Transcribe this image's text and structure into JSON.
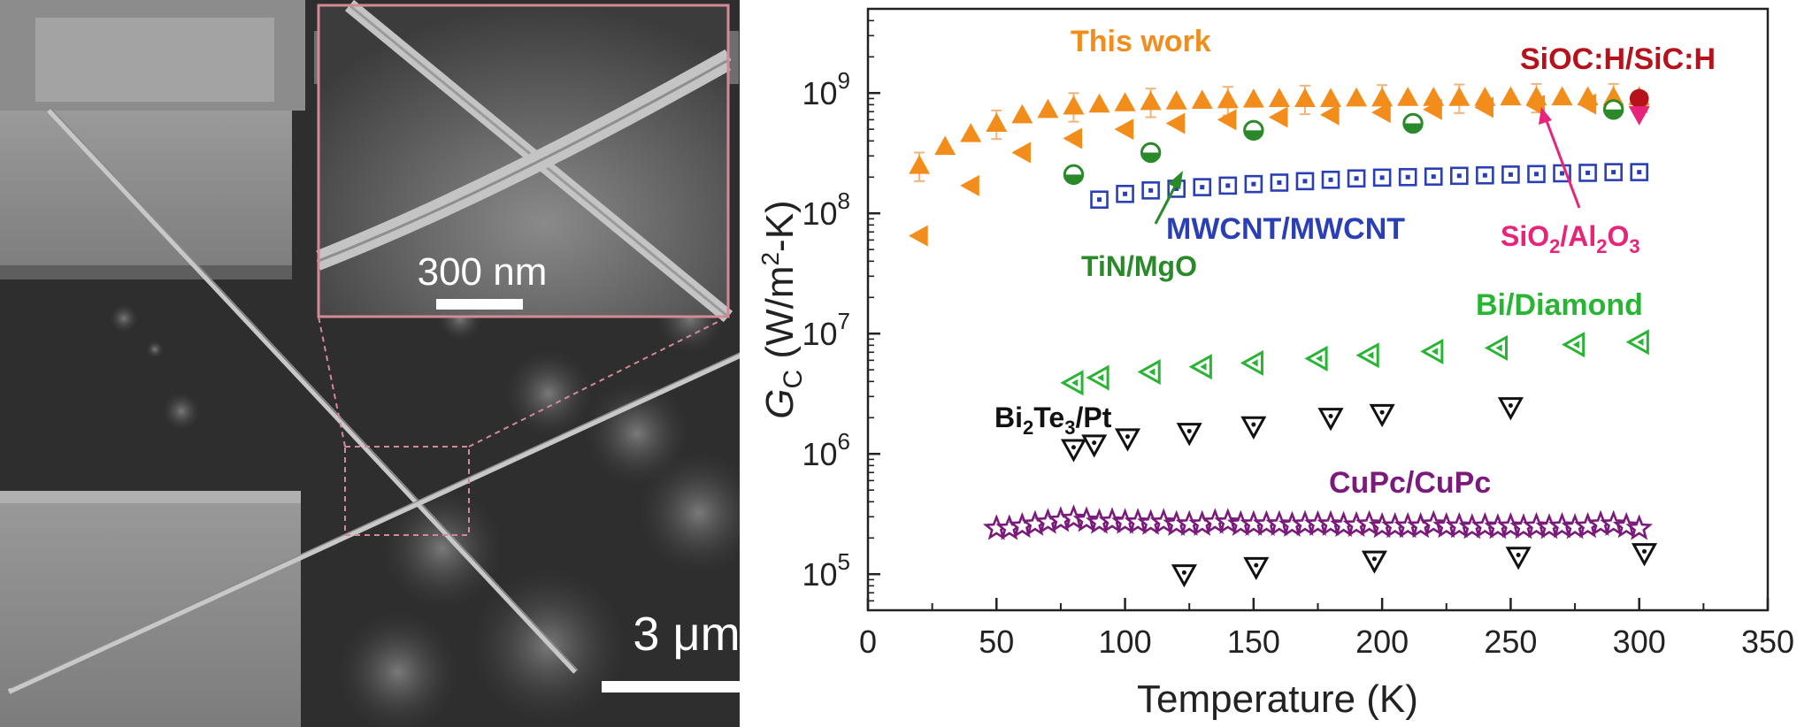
{
  "sem": {
    "inset_scale": "300 nm",
    "main_scale": "3 μm"
  },
  "chart_data": {
    "type": "scatter",
    "xlabel": "Temperature (K)",
    "ylabel_symbol": "G",
    "ylabel_sub": "C",
    "ylabel_units_a": " (W/m",
    "ylabel_units_sup": "2",
    "ylabel_units_b": "-K)",
    "xlim": [
      0,
      350
    ],
    "ylim_log10": [
      4.7,
      9.7
    ],
    "yscale": "log",
    "xticks": [
      "0",
      "50",
      "100",
      "150",
      "200",
      "250",
      "300",
      "350"
    ],
    "yticks": [
      {
        "base": "10",
        "exp": "5"
      },
      {
        "base": "10",
        "exp": "6"
      },
      {
        "base": "10",
        "exp": "7"
      },
      {
        "base": "10",
        "exp": "8"
      },
      {
        "base": "10",
        "exp": "9"
      }
    ],
    "series": [
      {
        "name": "This work",
        "color": "#f28c1a",
        "marker": "triangle-up-filled",
        "x": [
          20,
          30,
          40,
          50,
          60,
          70,
          80,
          90,
          100,
          110,
          120,
          130,
          140,
          150,
          160,
          170,
          180,
          190,
          200,
          210,
          220,
          230,
          240,
          250,
          260,
          270,
          280,
          290,
          300
        ],
        "y": [
          250000000.0,
          360000000.0,
          460000000.0,
          560000000.0,
          660000000.0,
          730000000.0,
          780000000.0,
          810000000.0,
          830000000.0,
          850000000.0,
          860000000.0,
          870000000.0,
          880000000.0,
          890000000.0,
          900000000.0,
          900000000.0,
          900000000.0,
          910000000.0,
          910000000.0,
          920000000.0,
          920000000.0,
          920000000.0,
          920000000.0,
          930000000.0,
          930000000.0,
          930000000.0,
          930000000.0,
          930000000.0,
          930000000.0
        ]
      },
      {
        "name": "",
        "color": "#f28c1a",
        "marker": "triangle-left-filled",
        "x": [
          20,
          40,
          60,
          80,
          100,
          120,
          140,
          160,
          180,
          200,
          220,
          240,
          260,
          280,
          300
        ],
        "y": [
          65000000.0,
          170000000.0,
          320000000.0,
          420000000.0,
          500000000.0,
          560000000.0,
          600000000.0,
          630000000.0,
          660000000.0,
          690000000.0,
          730000000.0,
          760000000.0,
          790000000.0,
          810000000.0,
          830000000.0
        ]
      },
      {
        "name": "TiN/MgO",
        "color": "#2a8a2a",
        "marker": "circle-half",
        "x": [
          80,
          110,
          150,
          212,
          290
        ],
        "y": [
          210000000.0,
          320000000.0,
          490000000.0,
          560000000.0,
          730000000.0
        ]
      },
      {
        "name": "MWCNT/MWCNT",
        "color": "#2a3fb5",
        "marker": "square-open-dot",
        "x": [
          90,
          100,
          110,
          120,
          130,
          140,
          150,
          160,
          170,
          180,
          190,
          200,
          210,
          220,
          230,
          240,
          250,
          260,
          270,
          280,
          290,
          300
        ],
        "y": [
          130000000.0,
          145000000.0,
          155000000.0,
          160000000.0,
          165000000.0,
          170000000.0,
          175000000.0,
          180000000.0,
          185000000.0,
          190000000.0,
          195000000.0,
          198000000.0,
          200000000.0,
          202000000.0,
          205000000.0,
          207000000.0,
          210000000.0,
          212000000.0,
          215000000.0,
          217000000.0,
          220000000.0,
          220000000.0
        ]
      },
      {
        "name": "SiOC:H/SiC:H",
        "color": "#b5121b",
        "marker": "circle-filled",
        "x": [
          300
        ],
        "y": [
          900000000.0
        ]
      },
      {
        "name": "SiO2/Al2O3",
        "color": "#e8237a",
        "marker": "triangle-down-filled",
        "x": [
          300
        ],
        "y": [
          660000000.0
        ]
      },
      {
        "name": "Bi/Diamond",
        "color": "#29b534",
        "marker": "triangle-left-open",
        "x": [
          80,
          90,
          110,
          130,
          150,
          175,
          195,
          220,
          245,
          275,
          300
        ],
        "y": [
          3900000.0,
          4300000.0,
          4800000.0,
          5300000.0,
          5700000.0,
          6200000.0,
          6600000.0,
          7100000.0,
          7600000.0,
          8100000.0,
          8500000.0
        ]
      },
      {
        "name": "Bi2Te3/Pt",
        "color": "#111111",
        "marker": "triangle-down-open",
        "x": [
          80,
          88,
          101,
          125,
          150,
          180,
          200,
          250,
          123,
          151,
          197,
          253,
          302
        ],
        "y": [
          1100000.0,
          1200000.0,
          1350000.0,
          1500000.0,
          1700000.0,
          2000000.0,
          2150000.0,
          2450000.0,
          100000.0,
          115000.0,
          130000.0,
          140000.0,
          150000.0
        ]
      },
      {
        "name": "CuPc/CuPc",
        "color": "#7a1a7a",
        "marker": "star-open",
        "x": [
          50,
          55,
          60,
          65,
          70,
          75,
          80,
          85,
          90,
          95,
          100,
          105,
          110,
          115,
          120,
          125,
          130,
          135,
          140,
          145,
          150,
          155,
          160,
          165,
          170,
          175,
          180,
          185,
          190,
          195,
          200,
          205,
          210,
          215,
          220,
          225,
          230,
          235,
          240,
          245,
          250,
          255,
          260,
          265,
          270,
          275,
          280,
          285,
          290,
          295,
          300
        ],
        "y": [
          240000.0,
          240000.0,
          250000.0,
          260000.0,
          270000.0,
          280000.0,
          290000.0,
          280000.0,
          270000.0,
          275000.0,
          270000.0,
          270000.0,
          265000.0,
          270000.0,
          260000.0,
          260000.0,
          260000.0,
          270000.0,
          270000.0,
          260000.0,
          260000.0,
          260000.0,
          260000.0,
          255000.0,
          260000.0,
          260000.0,
          260000.0,
          255000.0,
          255000.0,
          260000.0,
          250000.0,
          250000.0,
          250000.0,
          250000.0,
          260000.0,
          250000.0,
          250000.0,
          245000.0,
          250000.0,
          245000.0,
          250000.0,
          245000.0,
          250000.0,
          245000.0,
          250000.0,
          245000.0,
          250000.0,
          260000.0,
          260000.0,
          250000.0,
          240000.0
        ]
      }
    ],
    "labels": {
      "this_work": "This work",
      "sioc": "SiOC:H/SiC:H",
      "mwcnt": "MWCNT/MWCNT",
      "tin": "TiN/MgO",
      "bidiamond": "Bi/Diamond",
      "cupc": "CuPc/CuPc",
      "sio2_a": "SiO",
      "sio2_sub1": "2",
      "sio2_b": "/Al",
      "sio2_sub2": "2",
      "sio2_c": "O",
      "sio2_sub3": "3",
      "bite_a": "Bi",
      "bite_sub1": "2",
      "bite_b": "Te",
      "bite_sub2": "3",
      "bite_c": "/Pt"
    }
  }
}
